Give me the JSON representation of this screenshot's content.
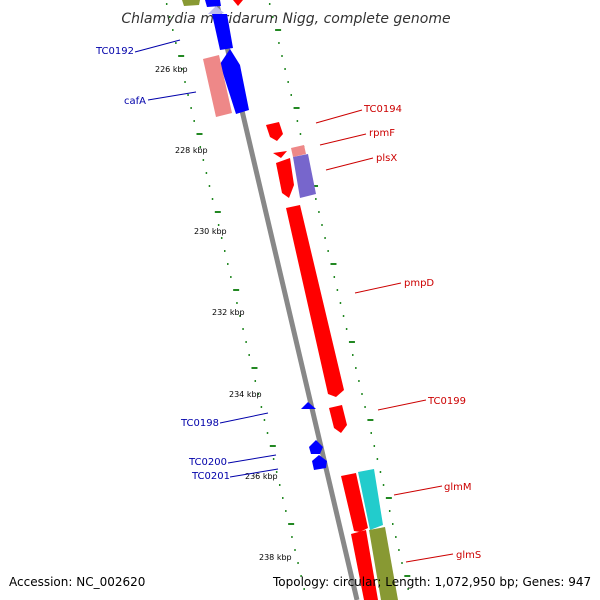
{
  "title": "Chlamydia muridarum Nigg, complete genome",
  "footer": {
    "accession": "Accession: NC_002620",
    "summary": "Topology: circular; Length: 1,072,950 bp; Genes: 947"
  },
  "colors": {
    "forward_gene": "#ff0000",
    "reverse_gene": "#0000ff",
    "minor_forward": "#ee8888",
    "minor_reverse": "#7766cc",
    "cyan_gene": "#22cccc",
    "olive_gene": "#889933",
    "tick": "#228822",
    "backbone": "#888888",
    "label_forward": "#cc0000",
    "label_reverse": "#0000aa"
  },
  "kbp_labels": [
    "226 kbp",
    "228 kbp",
    "230 kbp",
    "232 kbp",
    "234 kbp",
    "236 kbp",
    "238 kbp"
  ],
  "genes_forward_labels": [
    "TC0194",
    "rpmF",
    "plsX",
    "pmpD",
    "TC0199",
    "glmM",
    "glmS"
  ],
  "genes_reverse_labels": [
    "TC0192",
    "cafA",
    "TC0198",
    "TC0200",
    "TC0201"
  ]
}
